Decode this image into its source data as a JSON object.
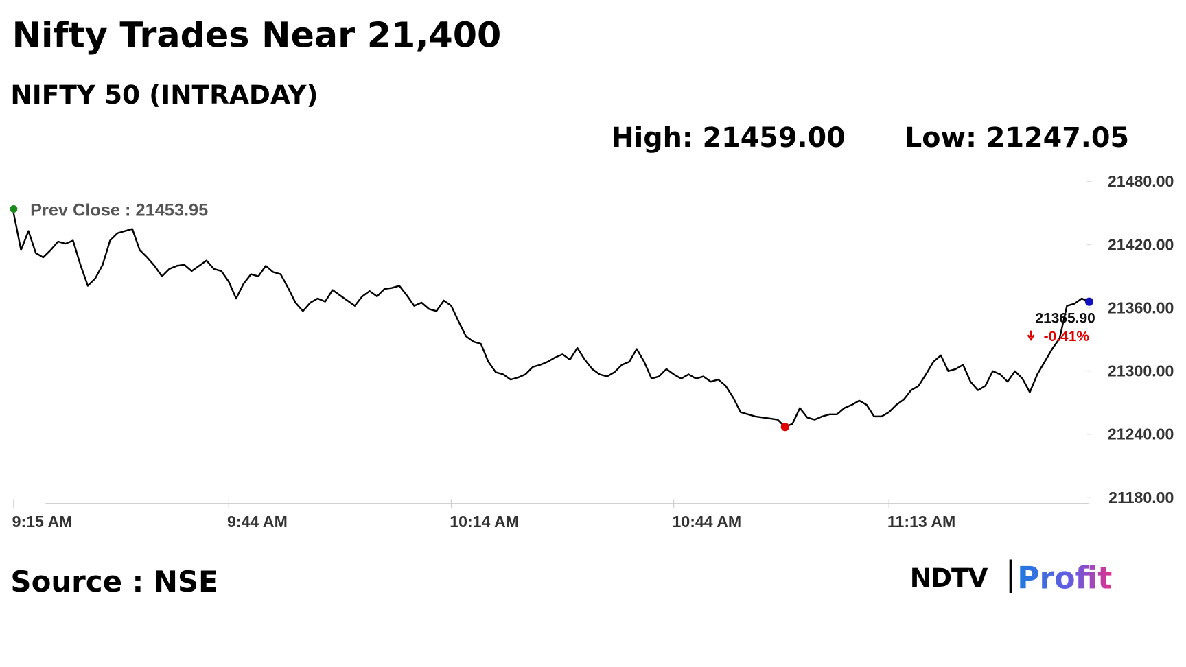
{
  "chart_data": {
    "type": "line",
    "title": "Nifty Trades Near 21,400",
    "subtitle": "NIFTY 50 (INTRADAY)",
    "high_label": "High: 21459.00",
    "low_label": "Low: 21247.05",
    "prev_close_label": "Prev Close : 21453.95",
    "prev_close": 21453.95,
    "prev_close_color": "#b22222",
    "last_label": "21365.90",
    "change_label": "-0.41%",
    "change_color": "#e00000",
    "low_marker_color": "#e00000",
    "last_marker_color": "#1010c0",
    "prev_marker_color": "#1a8a1a",
    "source": "Source : NSE",
    "brand": [
      "NDTV",
      "Profit"
    ],
    "ylim": [
      21180,
      21480
    ],
    "yticks": [
      {
        "value": 21180,
        "label": "21180.00"
      },
      {
        "value": 21240,
        "label": "21240.00"
      },
      {
        "value": 21300,
        "label": "21300.00"
      },
      {
        "value": 21360,
        "label": "21360.00"
      },
      {
        "value": 21420,
        "label": "21420.00"
      },
      {
        "value": 21480,
        "label": "21480.00"
      }
    ],
    "categories": [
      "9:15 AM",
      null,
      null,
      null,
      null,
      null,
      null,
      null,
      null,
      null,
      null,
      null,
      null,
      null,
      null,
      null,
      null,
      null,
      null,
      null,
      null,
      null,
      null,
      null,
      null,
      null,
      null,
      null,
      null,
      "9:44 AM",
      null,
      null,
      null,
      null,
      null,
      null,
      null,
      null,
      null,
      null,
      null,
      null,
      null,
      null,
      null,
      null,
      null,
      null,
      null,
      null,
      null,
      null,
      null,
      null,
      null,
      null,
      null,
      null,
      null,
      "10:14 AM",
      null,
      null,
      null,
      null,
      null,
      null,
      null,
      null,
      null,
      null,
      null,
      null,
      null,
      null,
      null,
      null,
      null,
      null,
      null,
      null,
      null,
      null,
      null,
      null,
      null,
      null,
      null,
      null,
      null,
      "10:44 AM",
      null,
      null,
      null,
      null,
      null,
      null,
      null,
      null,
      null,
      null,
      null,
      null,
      null,
      null,
      null,
      null,
      null,
      null,
      null,
      null,
      null,
      null,
      null,
      null,
      null,
      null,
      null,
      null,
      "11:13 AM",
      null,
      null,
      null,
      null,
      null,
      null,
      null,
      null,
      null,
      null,
      null,
      null,
      null,
      null,
      null,
      null,
      null,
      null,
      null,
      null,
      null,
      null,
      null,
      null,
      null,
      null,
      null
    ],
    "series": [
      {
        "name": "NIFTY 50",
        "color": "#000000",
        "values": [
          21450,
          21415,
          21433,
          21412,
          21408,
          21415,
          21423,
          21421,
          21424,
          21401,
          21381,
          21388,
          21401,
          21424,
          21431,
          21433,
          21435,
          21415,
          21408,
          21400,
          21390,
          21397,
          21400,
          21401,
          21395,
          21400,
          21405,
          21397,
          21395,
          21385,
          21369,
          21383,
          21392,
          21390,
          21400,
          21394,
          21392,
          21379,
          21365,
          21357,
          21365,
          21369,
          21366,
          21377,
          21372,
          21367,
          21362,
          21371,
          21376,
          21371,
          21378,
          21379,
          21381,
          21372,
          21362,
          21365,
          21359,
          21357,
          21367,
          21362,
          21347,
          21333,
          21328,
          21326,
          21309,
          21299,
          21297,
          21292,
          21294,
          21297,
          21304,
          21306,
          21309,
          21313,
          21316,
          21311,
          21322,
          21311,
          21302,
          21297,
          21295,
          21299,
          21306,
          21309,
          21321,
          21309,
          21293,
          21295,
          21302,
          21297,
          21293,
          21297,
          21293,
          21295,
          21290,
          21292,
          21286,
          21275,
          21261,
          21259,
          21257,
          21256,
          21255,
          21254,
          21247.05,
          21250,
          21265,
          21256,
          21254,
          21257,
          21259,
          21259,
          21265,
          21268,
          21272,
          21268,
          21257,
          21257,
          21261,
          21268,
          21273,
          21282,
          21286,
          21297,
          21309,
          21315,
          21300,
          21302,
          21306,
          21290,
          21282,
          21286,
          21300,
          21297,
          21290,
          21300,
          21293,
          21280,
          21297,
          21309,
          21321,
          21331,
          21362,
          21364,
          21369,
          21365.9
        ]
      }
    ]
  }
}
